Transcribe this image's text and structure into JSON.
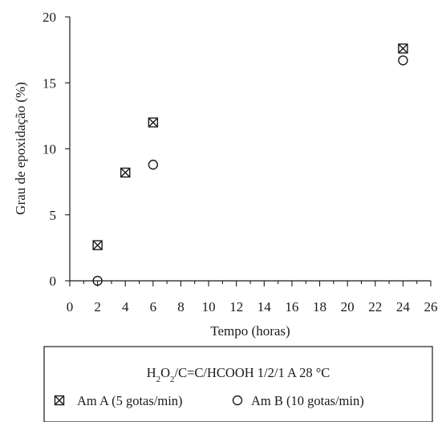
{
  "chart_data": {
    "type": "scatter",
    "xlabel": "Tempo (horas)",
    "ylabel": "Grau de epoxidação (%)",
    "xlim": [
      0,
      26
    ],
    "ylim": [
      0,
      20
    ],
    "x_ticks": [
      0,
      2,
      4,
      6,
      8,
      10,
      12,
      14,
      16,
      18,
      20,
      22,
      24,
      26
    ],
    "y_ticks": [
      0,
      5,
      10,
      15,
      20
    ],
    "grid": false,
    "legend": {
      "position": "bottom",
      "title_parts": [
        {
          "text": "H",
          "sub": false
        },
        {
          "text": "2",
          "sub": true
        },
        {
          "text": "O",
          "sub": false
        },
        {
          "text": "2",
          "sub": true
        },
        {
          "text": "/C=C/HCOOH 1/2/1 A 28 °C",
          "sub": false
        }
      ]
    },
    "series": [
      {
        "name": "Am A (5 gotas/min)",
        "marker": "boxed-x",
        "x": [
          2,
          4,
          6,
          24
        ],
        "y": [
          2.7,
          8.2,
          12.0,
          17.6
        ]
      },
      {
        "name": "Am B (10 gotas/min)",
        "marker": "circle",
        "x": [
          2,
          6,
          24
        ],
        "y": [
          0.0,
          8.8,
          16.7
        ]
      }
    ]
  }
}
